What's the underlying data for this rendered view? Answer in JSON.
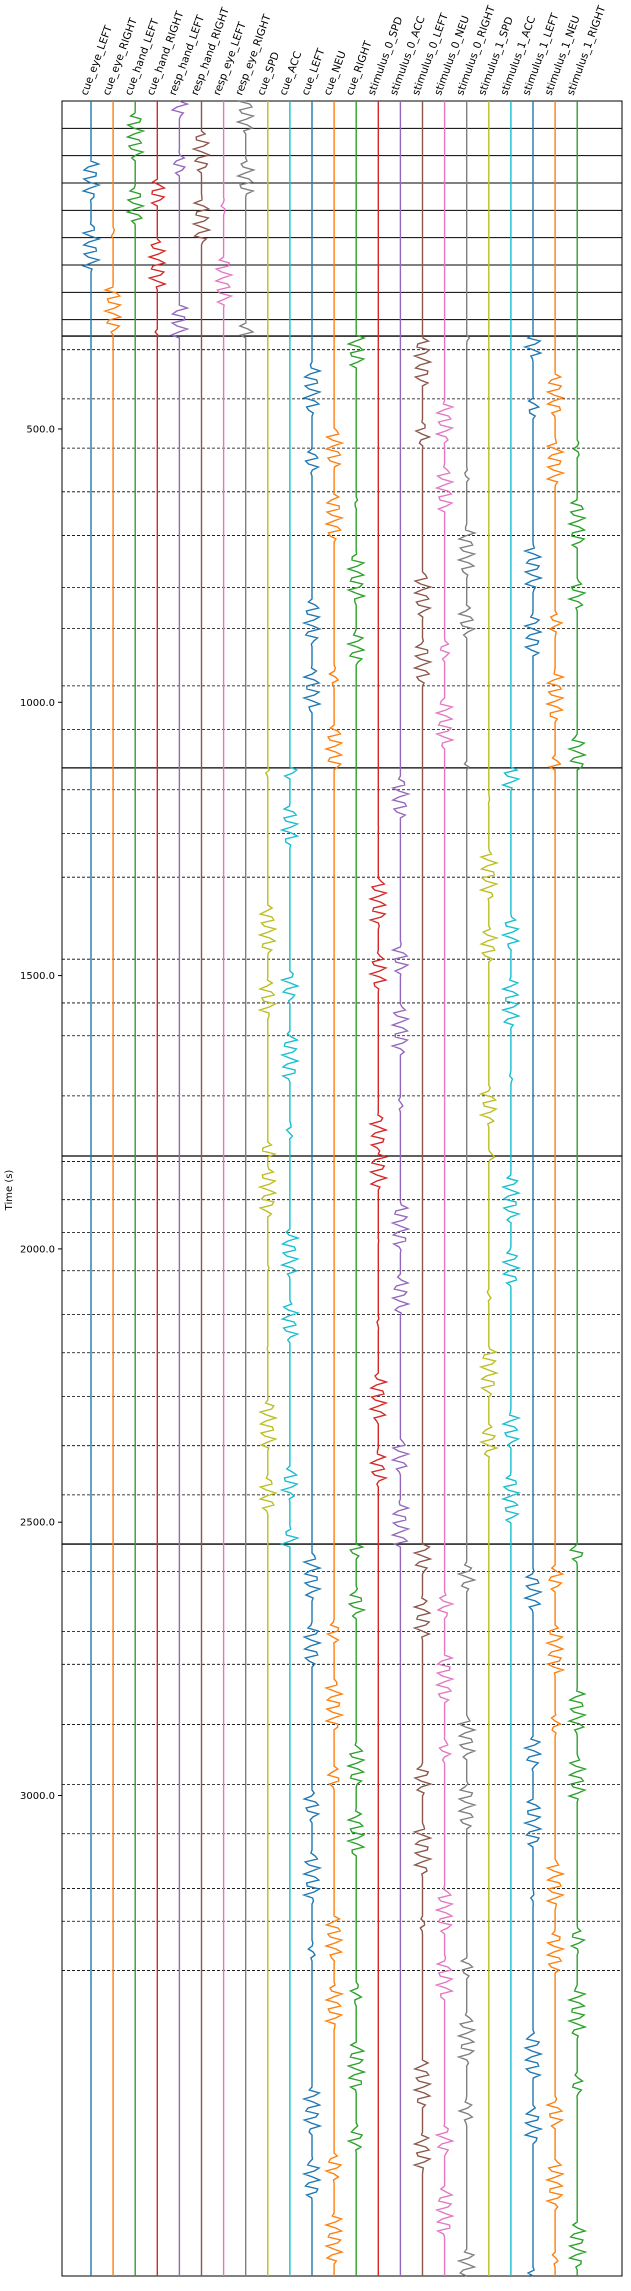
{
  "chart_data": {
    "type": "line",
    "title": "",
    "xlabel": "",
    "ylabel": "Time (s)",
    "ylim": [
      3879,
      -100
    ],
    "y_ticks": [
      "500.0",
      "1000.0",
      "1500.0",
      "2000.0",
      "2500.0",
      "3000.0"
    ],
    "y_tick_values": [
      500,
      1000,
      1500,
      2000,
      2500,
      3000
    ],
    "series": [
      {
        "name": "cue_eye_LEFT",
        "color": "#1f77b4"
      },
      {
        "name": "cue_eye_RIGHT",
        "color": "#ff7f0e"
      },
      {
        "name": "cue_hand_LEFT",
        "color": "#2ca02c"
      },
      {
        "name": "cue_hand_RIGHT",
        "color": "#d62728"
      },
      {
        "name": "resp_hand_LEFT",
        "color": "#9467bd"
      },
      {
        "name": "resp_hand_RIGHT",
        "color": "#8c564b"
      },
      {
        "name": "resp_eye_LEFT",
        "color": "#e377c2"
      },
      {
        "name": "resp_eye_RIGHT",
        "color": "#7f7f7f"
      },
      {
        "name": "cue_SPD",
        "color": "#bcbd22"
      },
      {
        "name": "cue_ACC",
        "color": "#17becf"
      },
      {
        "name": "cue_LEFT",
        "color": "#1f77b4"
      },
      {
        "name": "cue_NEU",
        "color": "#ff7f0e"
      },
      {
        "name": "cue_RIGHT",
        "color": "#2ca02c"
      },
      {
        "name": "stimulus_0_SPD",
        "color": "#d62728"
      },
      {
        "name": "stimulus_0_ACC",
        "color": "#9467bd"
      },
      {
        "name": "stimulus_0_LEFT",
        "color": "#8c564b"
      },
      {
        "name": "stimulus_0_NEU",
        "color": "#e377c2"
      },
      {
        "name": "stimulus_0_RIGHT",
        "color": "#7f7f7f"
      },
      {
        "name": "stimulus_1_SPD",
        "color": "#bcbd22"
      },
      {
        "name": "stimulus_1_ACC",
        "color": "#17becf"
      },
      {
        "name": "stimulus_1_LEFT",
        "color": "#1f77b4"
      },
      {
        "name": "stimulus_1_NEU",
        "color": "#ff7f0e"
      },
      {
        "name": "stimulus_1_RIGHT",
        "color": "#2ca02c"
      }
    ],
    "run_boundaries": [
      -100,
      330,
      1120,
      1830,
      2540,
      3879
    ],
    "block_markers": [
      -50,
      0,
      50,
      100,
      150,
      200,
      250,
      300,
      355,
      445,
      535,
      615,
      695,
      790,
      865,
      970,
      1050,
      1160,
      1240,
      1320,
      1470,
      1550,
      1610,
      1720,
      1840,
      1910,
      1970,
      2040,
      2120,
      2190,
      2270,
      2360,
      2450,
      2590,
      2700,
      2760,
      2870,
      2980,
      3070,
      3170,
      3230,
      3320
    ],
    "events": {
      "eye_events": [
        {
          "series": "cue_eye_LEFT",
          "starts": [
            -10,
            90,
            210
          ]
        },
        {
          "series": "cue_eye_RIGHT",
          "starts": [
            40,
            160,
            260
          ]
        }
      ]
    }
  }
}
